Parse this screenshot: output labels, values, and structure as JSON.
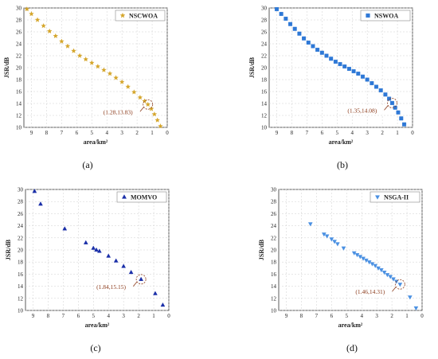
{
  "figure": {
    "captions": [
      "(a)",
      "(b)",
      "(c)",
      "(d)"
    ]
  },
  "chart_data": [
    {
      "type": "scatter",
      "panel": "(a)",
      "xlabel": "area/km²",
      "ylabel": "JSR/dB",
      "xlim": [
        9.5,
        0
      ],
      "ylim": [
        10,
        30
      ],
      "xticks": [
        9,
        8,
        7,
        6,
        5,
        4,
        3,
        2,
        1,
        0
      ],
      "yticks": [
        10,
        12,
        14,
        16,
        18,
        20,
        22,
        24,
        26,
        28,
        30
      ],
      "legend": "top-right",
      "series": [
        {
          "name": "NSCWOA",
          "marker": "star",
          "color": "#d4a52a",
          "x": [
            9.3,
            9.0,
            8.6,
            8.2,
            7.8,
            7.4,
            7.0,
            6.6,
            6.2,
            5.8,
            5.4,
            5.0,
            4.6,
            4.2,
            3.8,
            3.4,
            3.0,
            2.6,
            2.2,
            1.8,
            1.5,
            1.28,
            1.05,
            0.85,
            0.65,
            0.45
          ],
          "y": [
            29.8,
            29.0,
            28.0,
            27.0,
            26.1,
            25.3,
            24.4,
            23.6,
            22.8,
            22.0,
            21.4,
            20.8,
            20.2,
            19.6,
            19.0,
            18.3,
            17.6,
            16.8,
            15.9,
            15.0,
            14.4,
            13.83,
            13.1,
            12.2,
            11.2,
            10.2
          ]
        }
      ],
      "annotations": [
        {
          "text": "(1.28,13.83)",
          "x": 1.28,
          "y": 13.83
        }
      ]
    },
    {
      "type": "scatter",
      "panel": "(b)",
      "xlabel": "area/km²",
      "ylabel": "JSR/dB",
      "xlim": [
        9.5,
        0
      ],
      "ylim": [
        10,
        30
      ],
      "xticks": [
        9,
        8,
        7,
        6,
        5,
        4,
        3,
        2,
        1,
        0
      ],
      "yticks": [
        10,
        12,
        14,
        16,
        18,
        20,
        22,
        24,
        26,
        28,
        30
      ],
      "legend": "top-right",
      "series": [
        {
          "name": "NSWOA",
          "marker": "square",
          "color": "#2e78d6",
          "x": [
            9.0,
            8.7,
            8.4,
            8.1,
            7.8,
            7.5,
            7.2,
            6.9,
            6.6,
            6.3,
            6.0,
            5.7,
            5.4,
            5.1,
            4.8,
            4.5,
            4.2,
            3.9,
            3.6,
            3.3,
            3.0,
            2.7,
            2.4,
            2.1,
            1.8,
            1.55,
            1.35,
            1.15,
            0.95,
            0.75,
            0.55
          ],
          "y": [
            29.8,
            29.0,
            28.2,
            27.3,
            26.5,
            25.7,
            24.9,
            24.2,
            23.6,
            23.0,
            22.5,
            22.0,
            21.5,
            21.0,
            20.6,
            20.2,
            19.8,
            19.4,
            19.0,
            18.5,
            18.0,
            17.4,
            16.8,
            16.2,
            15.5,
            14.8,
            14.08,
            13.3,
            12.5,
            11.5,
            10.5
          ]
        }
      ],
      "annotations": [
        {
          "text": "(1.35,14.08)",
          "x": 1.35,
          "y": 14.08
        }
      ]
    },
    {
      "type": "scatter",
      "panel": "(c)",
      "xlabel": "area/km²",
      "ylabel": "JSR/dB",
      "xlim": [
        9.5,
        0
      ],
      "ylim": [
        10,
        30
      ],
      "xticks": [
        9,
        8,
        7,
        6,
        5,
        4,
        3,
        2,
        1,
        0
      ],
      "yticks": [
        10,
        12,
        14,
        16,
        18,
        20,
        22,
        24,
        26,
        28,
        30
      ],
      "legend": "top-right",
      "series": [
        {
          "name": "MOMVO",
          "marker": "triangle-up",
          "color": "#1a2fa8",
          "x": [
            8.9,
            8.5,
            6.9,
            5.5,
            5.0,
            4.8,
            4.6,
            4.0,
            3.5,
            3.0,
            2.5,
            1.84,
            0.9,
            0.4
          ],
          "y": [
            29.7,
            27.6,
            23.5,
            21.2,
            20.3,
            20.0,
            19.8,
            19.0,
            18.2,
            17.3,
            16.3,
            15.15,
            12.8,
            10.9
          ]
        }
      ],
      "annotations": [
        {
          "text": "(1.84,15.15)",
          "x": 1.84,
          "y": 15.15
        }
      ]
    },
    {
      "type": "scatter",
      "panel": "(d)",
      "xlabel": "area/km²",
      "ylabel": "JSR/dB",
      "xlim": [
        9.5,
        0
      ],
      "ylim": [
        10,
        30
      ],
      "xticks": [
        9,
        8,
        7,
        6,
        5,
        4,
        3,
        2,
        1,
        0
      ],
      "yticks": [
        10,
        12,
        14,
        16,
        18,
        20,
        22,
        24,
        26,
        28,
        30
      ],
      "legend": "top-right",
      "series": [
        {
          "name": "NSGA-II",
          "marker": "triangle-down",
          "color": "#4a90e2",
          "x": [
            7.4,
            6.5,
            6.3,
            6.0,
            5.8,
            5.6,
            5.2,
            4.5,
            4.3,
            4.1,
            3.9,
            3.7,
            3.5,
            3.3,
            3.1,
            2.9,
            2.7,
            2.5,
            2.3,
            2.1,
            1.9,
            1.7,
            1.46,
            0.8,
            0.4
          ],
          "y": [
            24.3,
            22.6,
            22.3,
            21.8,
            21.4,
            21.0,
            20.3,
            19.5,
            19.2,
            18.9,
            18.6,
            18.3,
            18.0,
            17.7,
            17.4,
            17.0,
            16.7,
            16.3,
            15.9,
            15.6,
            15.2,
            14.8,
            14.31,
            12.2,
            10.4
          ]
        }
      ],
      "annotations": [
        {
          "text": "(1.46,14.31)",
          "x": 1.46,
          "y": 14.31
        }
      ]
    }
  ]
}
